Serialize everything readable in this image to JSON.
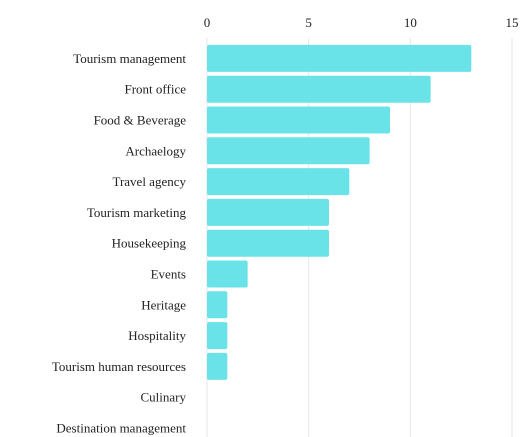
{
  "chart_data": {
    "type": "bar",
    "orientation": "horizontal",
    "categories": [
      "Tourism management",
      "Front office",
      "Food & Beverage",
      "Archaelogy",
      "Travel agency",
      "Tourism marketing",
      "Housekeeping",
      "Events",
      "Heritage",
      "Hospitality",
      "Tourism human resources",
      "Culinary",
      "Destination management"
    ],
    "values": [
      13,
      11,
      9,
      8,
      7,
      6,
      6,
      2,
      1,
      1,
      1,
      0,
      0
    ],
    "xlim": [
      0,
      15
    ],
    "xticks": [
      "0",
      "5",
      "10",
      "15"
    ],
    "x_axis_position": "top",
    "grid": "vertical",
    "bar_color": "#6ae3e8",
    "title": "",
    "xlabel": "",
    "ylabel": ""
  }
}
